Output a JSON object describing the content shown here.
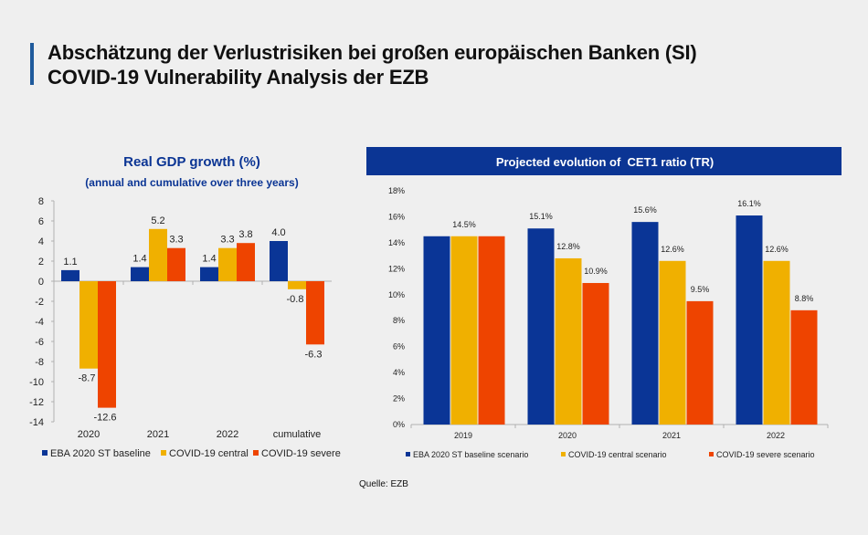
{
  "page": {
    "title_line1": "Abschätzung der Verlustrisiken bei großen europäischen Banken (SI)",
    "title_line2": "COVID-19 Vulnerability Analysis der EZB",
    "source": "Quelle: EZB"
  },
  "colors": {
    "baseline": "#0a3596",
    "central": "#f0b000",
    "severe": "#ee4400",
    "title_blue": "#0b3594",
    "accent_bar": "#1f5a9c"
  },
  "chart_data": [
    {
      "type": "bar",
      "title": "Real GDP growth (%)",
      "subtitle": "(annual and cumulative over three years)",
      "categories": [
        "2020",
        "2021",
        "2022",
        "cumulative"
      ],
      "series": [
        {
          "name": "EBA 2020 ST baseline",
          "values": [
            1.1,
            1.4,
            1.4,
            4.0
          ]
        },
        {
          "name": "COVID-19 central",
          "values": [
            -8.7,
            5.2,
            3.3,
            -0.8
          ]
        },
        {
          "name": "COVID-19 severe",
          "values": [
            -12.6,
            3.3,
            3.8,
            -6.3
          ]
        }
      ],
      "ylim": [
        -14,
        8
      ],
      "yticks": [
        8,
        6,
        4,
        2,
        0,
        -2,
        -4,
        -6,
        -8,
        -10,
        -12,
        -14
      ],
      "xlabel": "",
      "ylabel": "",
      "legend": "bottom",
      "grid": false
    },
    {
      "type": "bar",
      "title": "Projected evolution of  CET1 ratio (TR)",
      "categories": [
        "2019",
        "2020",
        "2021",
        "2022"
      ],
      "series": [
        {
          "name": "EBA 2020 ST baseline scenario",
          "values": [
            14.5,
            15.1,
            15.6,
            16.1
          ]
        },
        {
          "name": "COVID-19 central scenario",
          "values": [
            14.5,
            12.8,
            12.6,
            12.6
          ]
        },
        {
          "name": "COVID-19 severe scenario",
          "values": [
            14.5,
            10.9,
            9.5,
            8.8
          ]
        }
      ],
      "data_labels": [
        [
          "",
          "14.5%",
          ""
        ],
        [
          "15.1%",
          "12.8%",
          "10.9%"
        ],
        [
          "15.6%",
          "12.6%",
          "9.5%"
        ],
        [
          "16.1%",
          "12.6%",
          "8.8%"
        ]
      ],
      "ylim": [
        0,
        18
      ],
      "yticks": [
        "18%",
        "16%",
        "14%",
        "12%",
        "10%",
        "8%",
        "6%",
        "4%",
        "2%",
        "0%"
      ],
      "xlabel": "",
      "ylabel": "",
      "legend": "bottom",
      "grid": false
    }
  ]
}
